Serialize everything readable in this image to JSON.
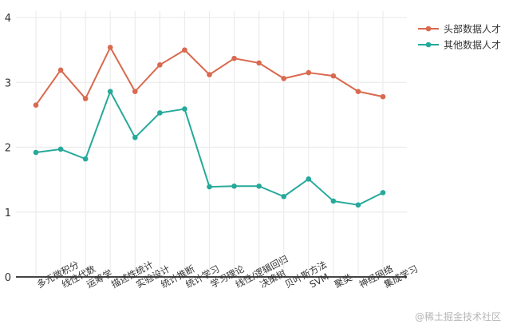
{
  "chart_data": {
    "type": "line",
    "categories": [
      "多元微积分",
      "线性代数",
      "运筹学",
      "描述性统计",
      "实验设计",
      "统计推断",
      "统计学习",
      "学习理论",
      "线性/逻辑回归",
      "决策树",
      "贝叶斯方法",
      "SVM",
      "聚类",
      "神经网络",
      "集成学习"
    ],
    "series": [
      {
        "name": "头部数据人才",
        "color": "#d9694f",
        "values": [
          2.65,
          3.19,
          2.75,
          3.54,
          2.86,
          3.27,
          3.5,
          3.12,
          3.37,
          3.3,
          3.06,
          3.15,
          3.1,
          2.86,
          2.78
        ]
      },
      {
        "name": "其他数据人才",
        "color": "#25a99a",
        "values": [
          1.92,
          1.97,
          1.82,
          2.86,
          2.15,
          2.53,
          2.59,
          1.39,
          1.4,
          1.4,
          1.24,
          1.51,
          1.17,
          1.11,
          1.3
        ]
      }
    ],
    "ylim": [
      0,
      4
    ],
    "yticks": [
      0,
      1,
      2,
      3,
      4
    ],
    "grid": true,
    "legend_position": "top-right"
  },
  "watermark": "@稀土掘金技术社区"
}
